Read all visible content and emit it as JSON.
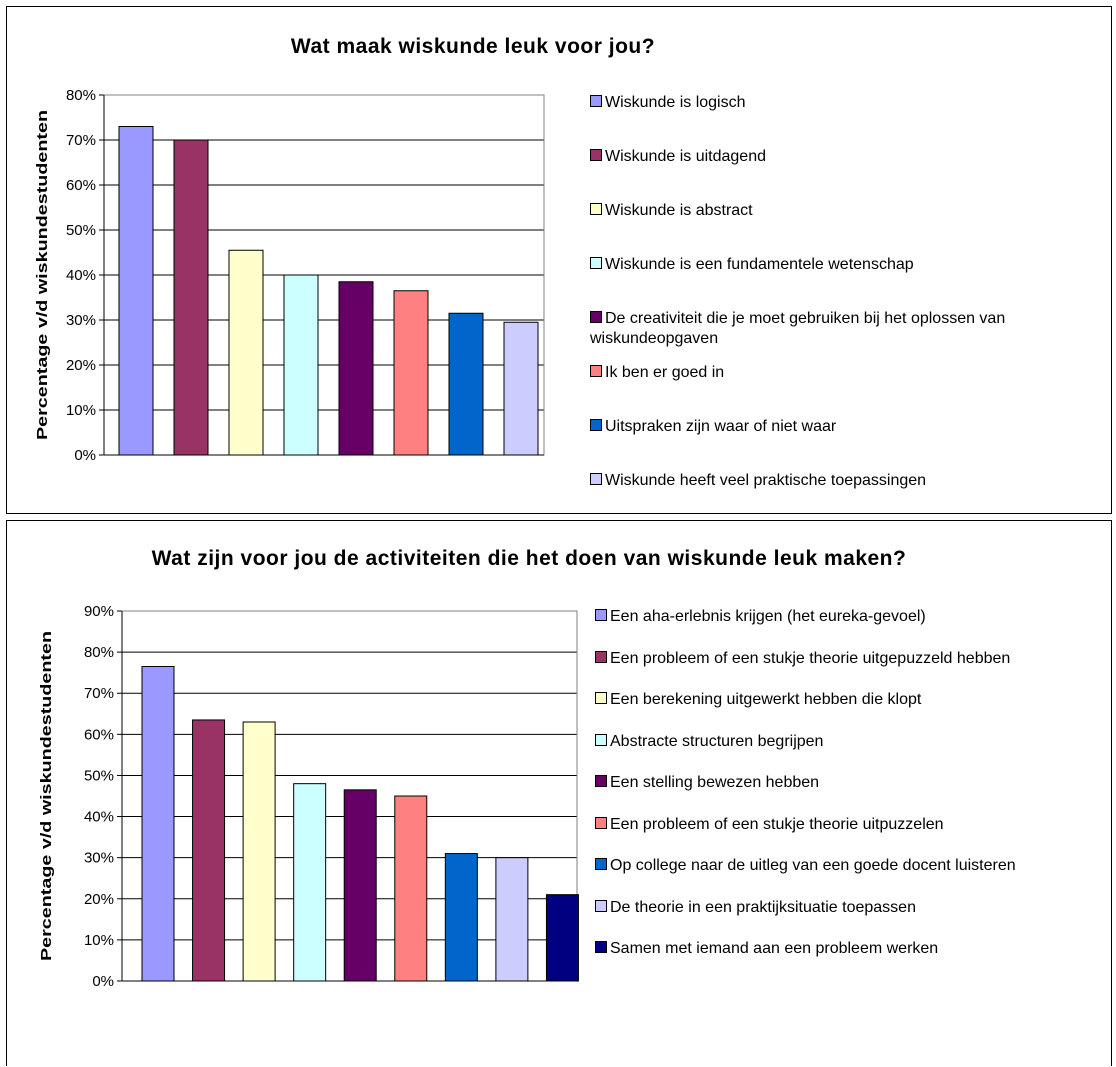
{
  "chart_data": [
    {
      "type": "bar",
      "title": "Wat maak wiskunde leuk voor jou?",
      "ylabel": "Percentage v/d wiskundestudenten",
      "xlabel": "",
      "ylim": [
        0,
        80
      ],
      "yticks": [
        "0%",
        "10%",
        "20%",
        "30%",
        "40%",
        "50%",
        "60%",
        "70%",
        "80%"
      ],
      "grid": true,
      "legend_position": "right",
      "categories": [
        "Wiskunde is logisch",
        "Wiskunde is uitdagend",
        "Wiskunde is abstract",
        "Wiskunde is een fundamentele wetenschap",
        "De creativiteit die je moet gebruiken bij het oplossen van wiskundeopgaven",
        "Ik ben er goed in",
        "Uitspraken zijn waar of niet waar",
        "Wiskunde heeft veel praktische toepassingen"
      ],
      "values": [
        73,
        70,
        45.5,
        40,
        38.5,
        36.5,
        31.5,
        29.5
      ],
      "colors": [
        "#9999FF",
        "#993366",
        "#FFFFCC",
        "#CCFFFF",
        "#660066",
        "#FF8080",
        "#0066CC",
        "#CCCCFF"
      ]
    },
    {
      "type": "bar",
      "title": "Wat zijn voor jou de activiteiten die het doen van wiskunde leuk maken?",
      "ylabel": "Percentage v/d wiskundestudenten",
      "xlabel": "",
      "ylim": [
        0,
        90
      ],
      "yticks": [
        "0%",
        "10%",
        "20%",
        "30%",
        "40%",
        "50%",
        "60%",
        "70%",
        "80%",
        "90%"
      ],
      "grid": true,
      "legend_position": "right",
      "categories": [
        "Een aha-erlebnis krijgen (het eureka-gevoel)",
        "Een probleem of een stukje theorie uitgepuzzeld hebben",
        "Een berekening uitgewerkt hebben die klopt",
        "Abstracte structuren begrijpen",
        "Een stelling bewezen hebben",
        "Een probleem of een stukje theorie uitpuzzelen",
        "Op college naar de uitleg van een goede docent luisteren",
        "De theorie in een praktijksituatie toepassen",
        "Samen met iemand aan een probleem werken"
      ],
      "values": [
        76.5,
        63.5,
        63,
        48,
        46.5,
        45,
        31,
        30,
        21
      ],
      "colors": [
        "#9999FF",
        "#993366",
        "#FFFFCC",
        "#CCFFFF",
        "#660066",
        "#FF8080",
        "#0066CC",
        "#CCCCFF",
        "#000080"
      ]
    }
  ]
}
